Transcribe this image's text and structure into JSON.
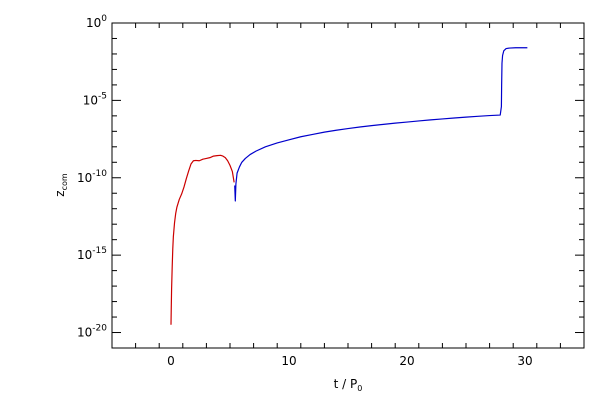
{
  "chart_data": {
    "type": "line",
    "title": "",
    "xlabel": {
      "base": "t / P",
      "subscript": "0"
    },
    "ylabel": {
      "base": "z",
      "subscript": "com"
    },
    "x_range": [
      -5,
      35
    ],
    "y_scale": "log",
    "y_exponent_range": [
      -21,
      0
    ],
    "x_ticks": [
      {
        "value": 0,
        "label": "0"
      },
      {
        "value": 10,
        "label": "10"
      },
      {
        "value": 20,
        "label": "20"
      },
      {
        "value": 30,
        "label": "30"
      }
    ],
    "y_ticks": [
      {
        "exp": 0,
        "base": "10",
        "sup": "0"
      },
      {
        "exp": -5,
        "base": "10",
        "sup": "-5"
      },
      {
        "exp": -10,
        "base": "10",
        "sup": "-10"
      },
      {
        "exp": -15,
        "base": "10",
        "sup": "-15"
      },
      {
        "exp": -20,
        "base": "10",
        "sup": "-20"
      }
    ],
    "grid": false,
    "colors": {
      "red": "#cc0000",
      "blue": "#0000cc",
      "axes": "#000000"
    },
    "series": [
      {
        "color": "#cc0000",
        "points": [
          [
            0.0,
            -19.5
          ],
          [
            0.02,
            -18.5
          ],
          [
            0.05,
            -17.2
          ],
          [
            0.1,
            -15.8
          ],
          [
            0.15,
            -14.6
          ],
          [
            0.2,
            -13.8
          ],
          [
            0.3,
            -12.9
          ],
          [
            0.4,
            -12.3
          ],
          [
            0.5,
            -11.9
          ],
          [
            0.7,
            -11.4
          ],
          [
            0.9,
            -11.05
          ],
          [
            1.1,
            -10.6
          ],
          [
            1.3,
            -10.05
          ],
          [
            1.5,
            -9.55
          ],
          [
            1.7,
            -9.1
          ],
          [
            1.9,
            -8.9
          ],
          [
            2.1,
            -8.88
          ],
          [
            2.4,
            -8.9
          ],
          [
            2.7,
            -8.8
          ],
          [
            3.0,
            -8.75
          ],
          [
            3.3,
            -8.7
          ],
          [
            3.6,
            -8.6
          ],
          [
            3.9,
            -8.57
          ],
          [
            4.2,
            -8.55
          ],
          [
            4.4,
            -8.6
          ],
          [
            4.6,
            -8.7
          ],
          [
            4.8,
            -8.9
          ],
          [
            5.0,
            -9.2
          ],
          [
            5.2,
            -9.6
          ],
          [
            5.35,
            -10.3
          ]
        ]
      },
      {
        "color": "#0000cc",
        "points": [
          [
            5.4,
            -10.5
          ],
          [
            5.45,
            -11.5
          ],
          [
            5.5,
            -10.4
          ],
          [
            5.6,
            -9.7
          ],
          [
            5.8,
            -9.3
          ],
          [
            6.0,
            -9.0
          ],
          [
            6.3,
            -8.75
          ],
          [
            6.7,
            -8.5
          ],
          [
            7.2,
            -8.28
          ],
          [
            8.0,
            -8.0
          ],
          [
            9.0,
            -7.75
          ],
          [
            10.0,
            -7.55
          ],
          [
            11.0,
            -7.35
          ],
          [
            12.0,
            -7.2
          ],
          [
            13.0,
            -7.05
          ],
          [
            14.0,
            -6.93
          ],
          [
            15.0,
            -6.82
          ],
          [
            16.0,
            -6.72
          ],
          [
            17.0,
            -6.63
          ],
          [
            18.0,
            -6.55
          ],
          [
            19.0,
            -6.47
          ],
          [
            20.0,
            -6.4
          ],
          [
            21.0,
            -6.33
          ],
          [
            22.0,
            -6.26
          ],
          [
            23.0,
            -6.2
          ],
          [
            24.0,
            -6.14
          ],
          [
            25.0,
            -6.08
          ],
          [
            26.0,
            -6.03
          ],
          [
            27.0,
            -5.98
          ],
          [
            27.9,
            -5.95
          ],
          [
            28.0,
            -5.4
          ],
          [
            28.02,
            -4.0
          ],
          [
            28.05,
            -2.6
          ],
          [
            28.1,
            -2.1
          ],
          [
            28.2,
            -1.8
          ],
          [
            28.4,
            -1.65
          ],
          [
            28.7,
            -1.62
          ],
          [
            29.2,
            -1.6
          ],
          [
            30.2,
            -1.6
          ]
        ]
      }
    ]
  }
}
